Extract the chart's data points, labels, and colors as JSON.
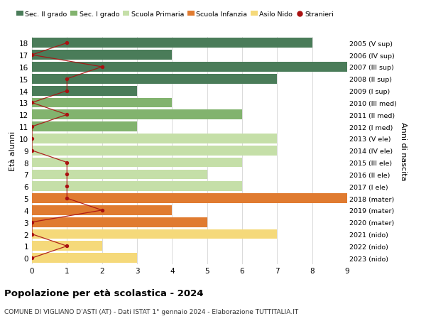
{
  "ages": [
    18,
    17,
    16,
    15,
    14,
    13,
    12,
    11,
    10,
    9,
    8,
    7,
    6,
    5,
    4,
    3,
    2,
    1,
    0
  ],
  "years": [
    "2005 (V sup)",
    "2006 (IV sup)",
    "2007 (III sup)",
    "2008 (II sup)",
    "2009 (I sup)",
    "2010 (III med)",
    "2011 (II med)",
    "2012 (I med)",
    "2013 (V ele)",
    "2014 (IV ele)",
    "2015 (III ele)",
    "2016 (II ele)",
    "2017 (I ele)",
    "2018 (mater)",
    "2019 (mater)",
    "2020 (mater)",
    "2021 (nido)",
    "2022 (nido)",
    "2023 (nido)"
  ],
  "bar_values": [
    8,
    4,
    9,
    7,
    3,
    4,
    6,
    3,
    7,
    7,
    6,
    5,
    6,
    9,
    4,
    5,
    7,
    2,
    3
  ],
  "bar_colors": [
    "#4a7c59",
    "#4a7c59",
    "#4a7c59",
    "#4a7c59",
    "#4a7c59",
    "#82b36e",
    "#82b36e",
    "#82b36e",
    "#c5dfa8",
    "#c5dfa8",
    "#c5dfa8",
    "#c5dfa8",
    "#c5dfa8",
    "#e07b30",
    "#e07b30",
    "#e07b30",
    "#f5d97a",
    "#f5d97a",
    "#f5d97a"
  ],
  "stranieri_x": [
    1,
    0,
    2,
    1,
    1,
    0,
    1,
    0,
    0,
    0,
    1,
    1,
    1,
    1,
    2,
    0,
    0,
    1,
    0
  ],
  "color_sec2": "#4a7c59",
  "color_sec1": "#82b36e",
  "color_primaria": "#c5dfa8",
  "color_infanzia": "#e07b30",
  "color_nido": "#f5d97a",
  "color_stranieri": "#aa1111",
  "title": "Popolazione per età scolastica - 2024",
  "subtitle": "COMUNE DI VIGLIANO D'ASTI (AT) - Dati ISTAT 1° gennaio 2024 - Elaborazione TUTTITALIA.IT",
  "xlabel_right": "Anni di nascita",
  "ylabel": "Età alunni",
  "xlim": [
    0,
    9
  ],
  "background_color": "#ffffff",
  "grid_color": "#cccccc"
}
